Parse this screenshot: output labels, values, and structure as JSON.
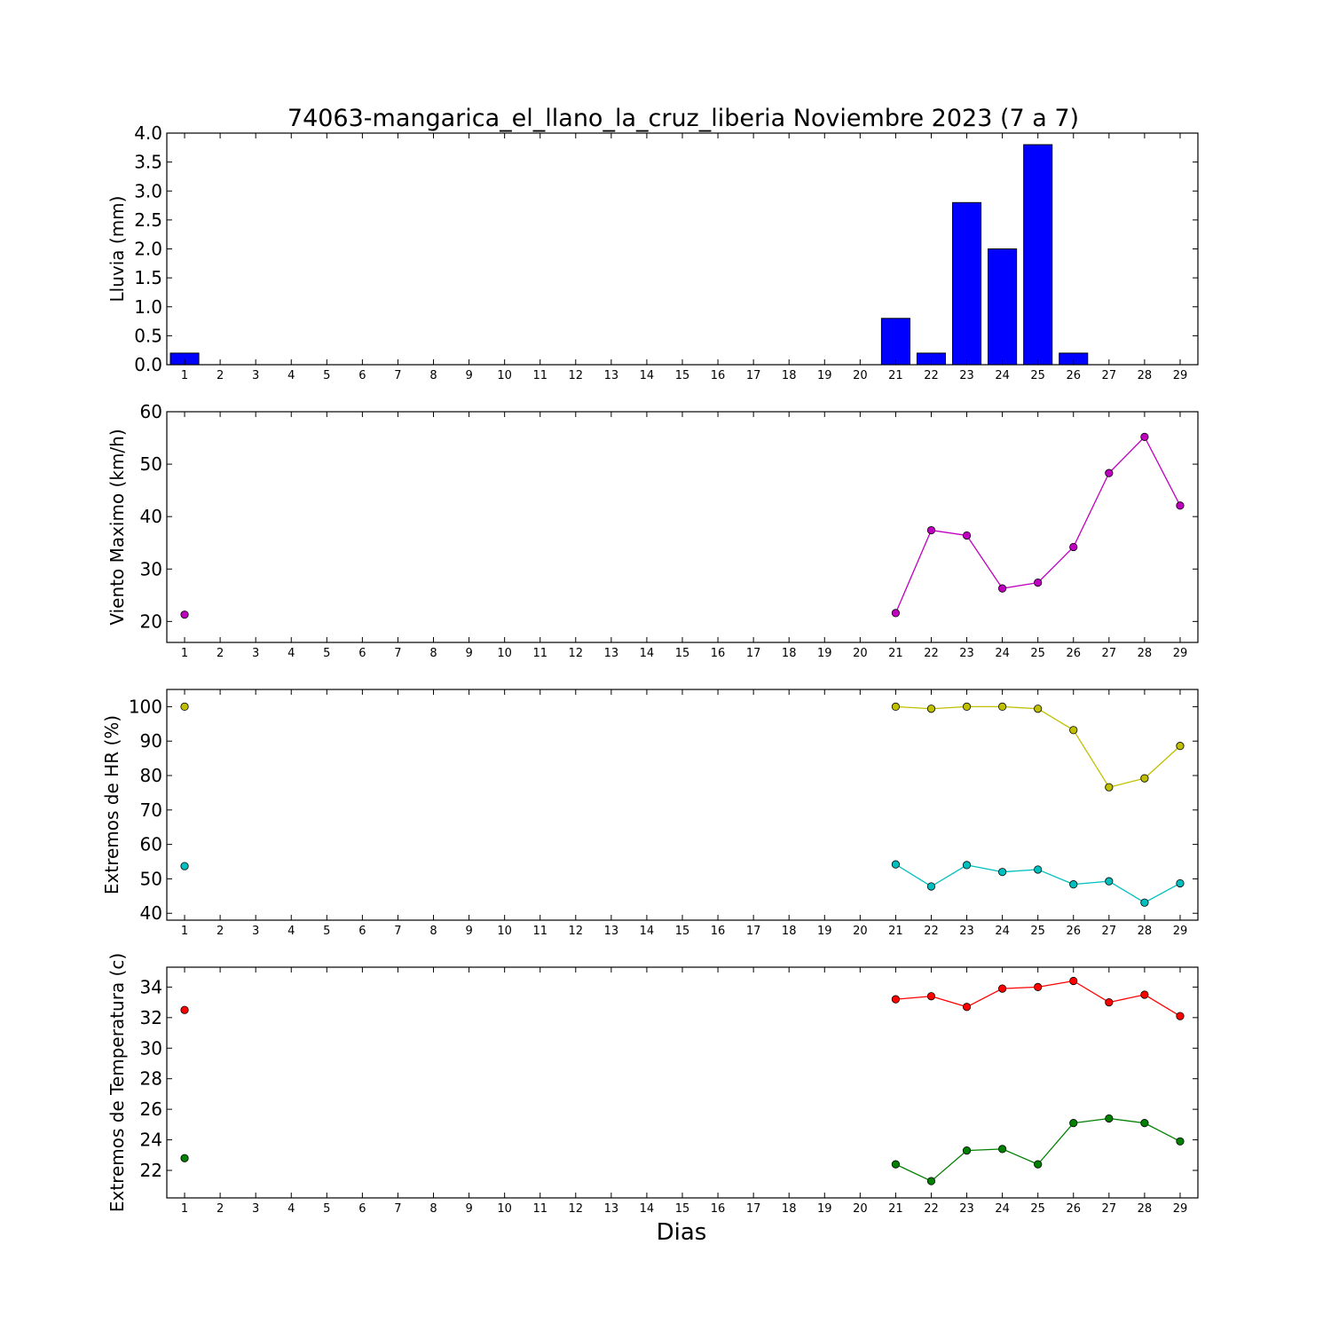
{
  "title": "74063-mangarica_el_llano_la_cruz_liberia Noviembre 2023  (7 a 7)",
  "xlabel": "Dias",
  "colors": {
    "bar": "#0000ff",
    "wind": "#bf00bf",
    "hr_max": "#bfbf00",
    "hr_min": "#00bfbf",
    "t_max": "#ff0000",
    "t_min": "#008000"
  },
  "chart_data": [
    {
      "type": "bar",
      "ylabel": "Lluvia (mm)",
      "ylim": [
        0,
        4.0
      ],
      "yticks": [
        0.0,
        0.5,
        1.0,
        1.5,
        2.0,
        2.5,
        3.0,
        3.5,
        4.0
      ],
      "ytick_labels": [
        "0.0",
        "0.5",
        "1.0",
        "1.5",
        "2.0",
        "2.5",
        "3.0",
        "3.5",
        "4.0"
      ],
      "x": [
        1,
        21,
        22,
        23,
        24,
        25,
        26,
        27,
        28
      ],
      "values": [
        0.2,
        0.8,
        0.2,
        2.8,
        2.0,
        3.8,
        0.2,
        0.0,
        0.0
      ]
    },
    {
      "type": "line",
      "ylabel": "Viento Maximo (km/h)",
      "ylim": [
        16,
        60
      ],
      "yticks": [
        20,
        30,
        40,
        50,
        60
      ],
      "ytick_labels": [
        "20",
        "30",
        "40",
        "50",
        "60"
      ],
      "series": [
        {
          "x": [
            1,
            21,
            22,
            23,
            24,
            25,
            26,
            27,
            28,
            29
          ],
          "values": [
            21.3,
            21.6,
            37.4,
            36.4,
            26.3,
            27.4,
            34.2,
            48.3,
            55.2,
            42.1
          ]
        }
      ]
    },
    {
      "type": "line",
      "ylabel": "Extremos de HR (%)",
      "ylim": [
        38,
        105
      ],
      "yticks": [
        40,
        50,
        60,
        70,
        80,
        90,
        100
      ],
      "ytick_labels": [
        "40",
        "50",
        "60",
        "70",
        "80",
        "90",
        "100"
      ],
      "series": [
        {
          "x": [
            1,
            21,
            22,
            23,
            24,
            25,
            26,
            27,
            28,
            29
          ],
          "values": [
            100,
            100,
            99.4,
            100,
            100,
            99.4,
            93.2,
            76.6,
            79.2,
            88.6
          ]
        },
        {
          "x": [
            1,
            21,
            22,
            23,
            24,
            25,
            26,
            27,
            28,
            29
          ],
          "values": [
            53.7,
            54.2,
            47.8,
            54.0,
            52.0,
            52.7,
            48.4,
            49.3,
            43.1,
            48.7
          ]
        }
      ]
    },
    {
      "type": "line",
      "ylabel": "Extremos de Temperatura (c)",
      "ylim": [
        20.2,
        35.3
      ],
      "yticks": [
        22,
        24,
        26,
        28,
        30,
        32,
        34
      ],
      "ytick_labels": [
        "22",
        "24",
        "26",
        "28",
        "30",
        "32",
        "34"
      ],
      "series": [
        {
          "x": [
            1,
            21,
            22,
            23,
            24,
            25,
            26,
            27,
            28,
            29
          ],
          "values": [
            32.5,
            33.2,
            33.4,
            32.7,
            33.9,
            34.0,
            34.4,
            33.0,
            33.5,
            32.1
          ]
        },
        {
          "x": [
            1,
            21,
            22,
            23,
            24,
            25,
            26,
            27,
            28,
            29
          ],
          "values": [
            22.8,
            22.4,
            21.3,
            23.3,
            23.4,
            22.4,
            25.1,
            25.4,
            25.1,
            23.9
          ]
        }
      ]
    }
  ],
  "xticks": [
    1,
    2,
    3,
    4,
    5,
    6,
    7,
    8,
    9,
    10,
    11,
    12,
    13,
    14,
    15,
    16,
    17,
    18,
    19,
    20,
    21,
    22,
    23,
    24,
    25,
    26,
    27,
    28,
    29
  ],
  "xtick_labels": [
    "1",
    "2",
    "3",
    "4",
    "5",
    "6",
    "7",
    "8",
    "9",
    "10",
    "11",
    "12",
    "13",
    "14",
    "15",
    "16",
    "17",
    "18",
    "19",
    "20",
    "21",
    "22",
    "23",
    "24",
    "25",
    "26",
    "27",
    "28",
    "29"
  ],
  "xlim": [
    0.5,
    29.5
  ]
}
